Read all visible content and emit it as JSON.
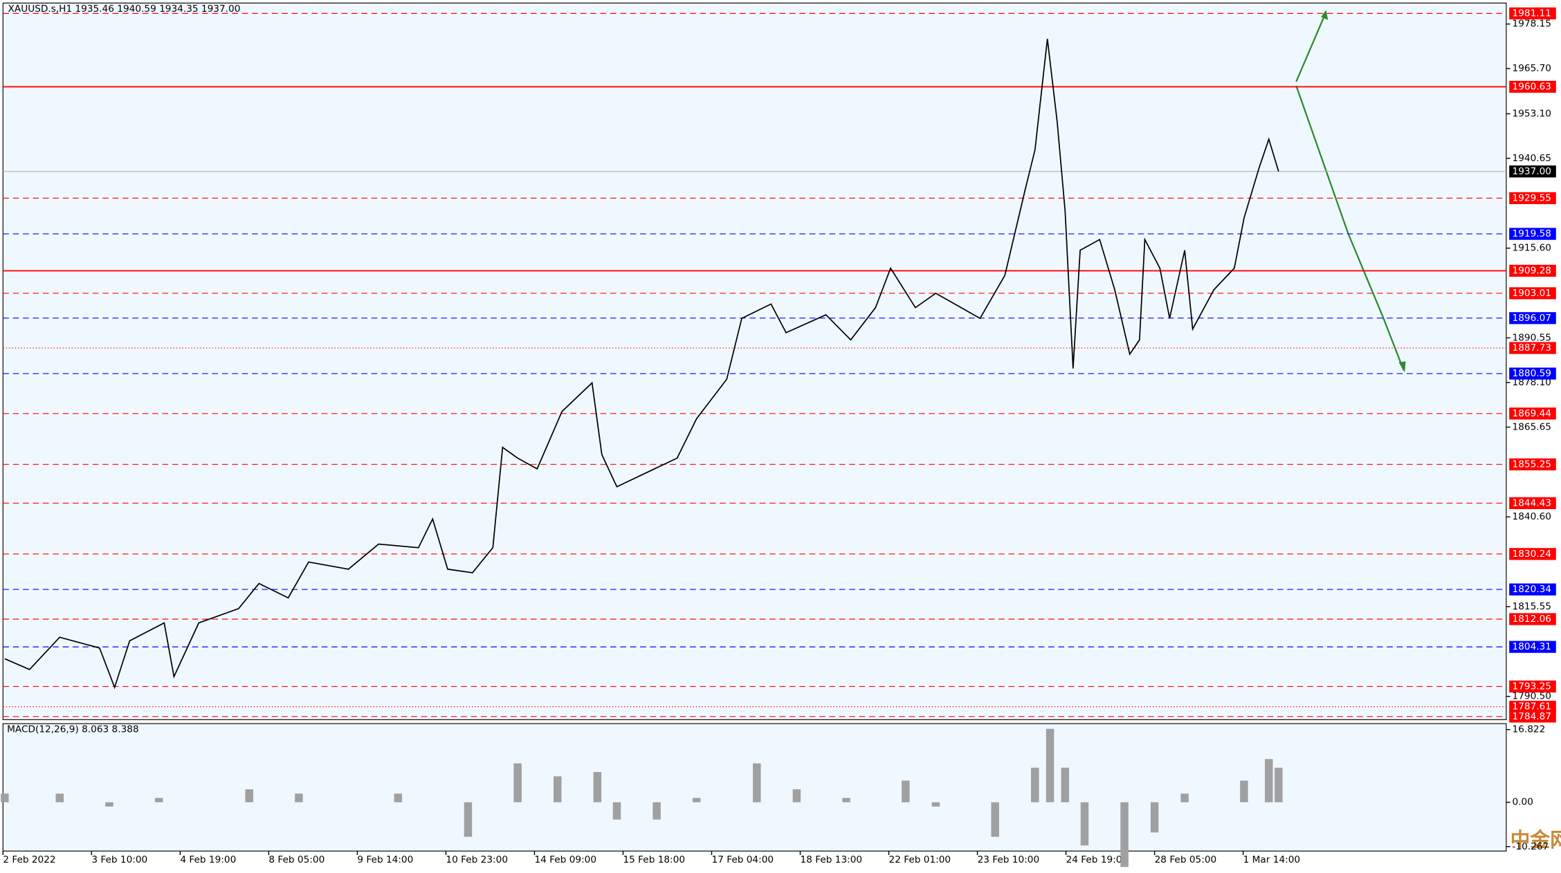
{
  "chart_data": {
    "type": "line",
    "title": "XAUUSD.s,H1  1935.46 1940.59 1934.35 1937.00",
    "watermark": "中金网",
    "xlim": [
      0,
      16.97
    ],
    "xticks": [
      {
        "value": 0,
        "label": "2 Feb 2022"
      },
      {
        "value": 1,
        "label": "3 Feb 10:00"
      },
      {
        "value": 2,
        "label": "4 Feb 19:00"
      },
      {
        "value": 3,
        "label": "8 Feb 05:00"
      },
      {
        "value": 4,
        "label": "9 Feb 14:00"
      },
      {
        "value": 5,
        "label": "10 Feb 23:00"
      },
      {
        "value": 6,
        "label": "14 Feb 09:00"
      },
      {
        "value": 7,
        "label": "15 Feb 18:00"
      },
      {
        "value": 8,
        "label": "17 Feb 04:00"
      },
      {
        "value": 9,
        "label": "18 Feb 13:00"
      },
      {
        "value": 10,
        "label": "22 Feb 01:00"
      },
      {
        "value": 11,
        "label": "23 Feb 10:00"
      },
      {
        "value": 12,
        "label": "24 Feb 19:00"
      },
      {
        "value": 13,
        "label": "28 Feb 05:00"
      },
      {
        "value": 14,
        "label": "1 Mar 14:00"
      }
    ],
    "ylim": [
      1784,
      1984
    ],
    "yticks": [
      1978.15,
      {
        "value": 1965.7,
        "label": "1965.70"
      },
      {
        "value": 1953.1,
        "label": "1953.10"
      },
      1940.65,
      {
        "value": 1915.6,
        "label": "1915.60"
      },
      1890.55,
      {
        "value": 1878.1,
        "label": "1878.10"
      },
      1865.65,
      {
        "value": 1840.6,
        "label": "1840.60"
      },
      1815.55,
      {
        "value": 1790.5,
        "label": "1790.50"
      }
    ],
    "grid": false,
    "levels": [
      {
        "value": 1981.11,
        "color": "#ff0000",
        "style": "dash"
      },
      {
        "value": 1960.63,
        "color": "#ff0000",
        "style": "solid"
      },
      {
        "value": 1937,
        "label": "1937.00",
        "color": "#000000",
        "style": "thin"
      },
      {
        "value": 1929.55,
        "color": "#ff0000",
        "style": "dash"
      },
      {
        "value": 1919.58,
        "color": "#0000ff",
        "style": "dash"
      },
      {
        "value": 1909.28,
        "color": "#ff0000",
        "style": "solid"
      },
      {
        "value": 1903.01,
        "color": "#ff0000",
        "style": "dash"
      },
      {
        "value": 1896.07,
        "color": "#0000ff",
        "style": "dash"
      },
      {
        "value": 1887.73,
        "color": "#ff0000",
        "style": "dot"
      },
      {
        "value": 1880.59,
        "color": "#0000ff",
        "style": "dash"
      },
      {
        "value": 1869.44,
        "color": "#ff0000",
        "style": "dash"
      },
      {
        "value": 1855.25,
        "color": "#ff0000",
        "style": "dash"
      },
      {
        "value": 1844.43,
        "color": "#ff0000",
        "style": "dash"
      },
      {
        "value": 1830.24,
        "color": "#ff0000",
        "style": "dash"
      },
      {
        "value": 1820.34,
        "color": "#0000ff",
        "style": "dash"
      },
      {
        "value": 1812.06,
        "color": "#ff0000",
        "style": "dash"
      },
      {
        "value": 1804.31,
        "color": "#0000ff",
        "style": "dash"
      },
      {
        "value": 1793.25,
        "color": "#ff0000",
        "style": "dash"
      },
      {
        "value": 1787.61,
        "color": "#ff0000",
        "style": "dot"
      },
      {
        "value": 1784.87,
        "color": "#ff0000",
        "style": "dash"
      }
    ],
    "series": [
      {
        "name": "XAUUSD.s",
        "color": "#000000",
        "x": [
          0.02,
          0.3,
          0.64,
          1.09,
          1.26,
          1.43,
          1.82,
          1.93,
          2.21,
          2.66,
          2.89,
          3.22,
          3.45,
          3.9,
          4.24,
          4.69,
          4.85,
          5.02,
          5.3,
          5.53,
          5.64,
          5.81,
          6.03,
          6.31,
          6.65,
          6.76,
          6.93,
          7.27,
          7.61,
          7.83,
          8.17,
          8.34,
          8.67,
          8.84,
          9.29,
          9.57,
          9.85,
          10.02,
          10.3,
          10.53,
          11.03,
          11.31,
          11.54,
          11.65,
          11.79,
          11.9,
          11.99,
          12.08,
          12.16,
          12.38,
          12.55,
          12.72,
          12.83,
          12.89,
          13.06,
          13.17,
          13.34,
          13.43,
          13.67,
          13.9,
          14.01,
          14.18,
          14.29,
          14.4
        ],
        "values": [
          1801,
          1798,
          1807,
          1804,
          1793,
          1806,
          1811,
          1796,
          1811,
          1815,
          1822,
          1818,
          1828,
          1826,
          1833,
          1832,
          1840,
          1826,
          1825,
          1832,
          1860,
          1857,
          1854,
          1870,
          1878,
          1858,
          1849,
          1853,
          1857,
          1868,
          1879,
          1896,
          1900,
          1892,
          1897,
          1890,
          1899,
          1910,
          1899,
          1903,
          1896,
          1908,
          1932,
          1943,
          1974,
          1951,
          1926,
          1882,
          1915,
          1918,
          1904,
          1886,
          1890,
          1918,
          1910,
          1896,
          1915,
          1893,
          1904,
          1910,
          1924,
          1938,
          1946,
          1937
        ]
      }
    ],
    "macd": {
      "label": "MACD(12,26,9) 8.063 8.388",
      "color": "#a0a0a0",
      "ylim": [
        -11.3,
        18.2
      ],
      "yticks": [
        16.822,
        {
          "value": 0,
          "label": "0.00"
        },
        -10.267
      ],
      "x": [
        0.02,
        0.64,
        1.2,
        1.76,
        2.78,
        3.34,
        4.46,
        5.25,
        5.81,
        6.26,
        6.71,
        6.93,
        7.38,
        7.83,
        8.51,
        8.96,
        9.52,
        10.19,
        10.53,
        11.2,
        11.65,
        11.82,
        11.99,
        12.21,
        12.66,
        13.0,
        13.34,
        13.67,
        14.01,
        14.29,
        14.4
      ],
      "values": [
        2,
        2,
        -1,
        1,
        3,
        2,
        2,
        -8,
        9,
        6,
        7,
        -4,
        -4,
        1,
        9,
        3,
        1,
        5,
        -1,
        -8,
        8,
        17,
        8,
        -10,
        -15,
        -7,
        2,
        0,
        5,
        10,
        8
      ]
    }
  }
}
